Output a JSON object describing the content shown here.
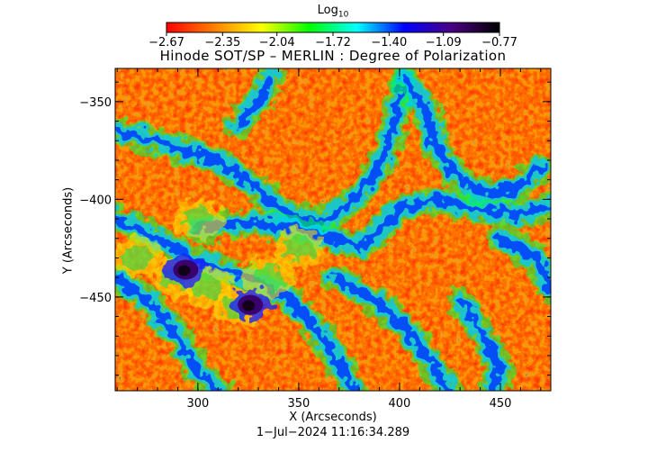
{
  "colorbar": {
    "label_main": "Log",
    "label_sub": "10",
    "ticks": [
      "−2.67",
      "−2.35",
      "−2.04",
      "−1.72",
      "−1.40",
      "−1.09",
      "−0.77"
    ],
    "colors": [
      "#ff0000",
      "#ff7f00",
      "#ffff00",
      "#00ff00",
      "#00ffff",
      "#0000ff",
      "#4b0082",
      "#000000"
    ]
  },
  "chart_data": {
    "type": "heatmap",
    "title": "Hinode SOT/SP – MERLIN : Degree of Polarization",
    "xlabel": "X (Arcseconds)",
    "ylabel": "Y (Arcseconds)",
    "xlim": [
      259,
      475
    ],
    "ylim": [
      -498,
      -333
    ],
    "xticks": [
      300,
      350,
      400,
      450
    ],
    "yticks": [
      -350,
      -400,
      -450
    ],
    "colorbar_range": [
      -2.67,
      -0.77
    ],
    "colorbar_ticks": [
      -2.67,
      -2.35,
      -2.04,
      -1.72,
      -1.4,
      -1.09,
      -0.77
    ],
    "low_polarization_color": "#ff1a00",
    "high_polarization_color": "#0000ff"
  },
  "footer": {
    "timestamp": "1−Jul−2024 11:16:34.289"
  }
}
